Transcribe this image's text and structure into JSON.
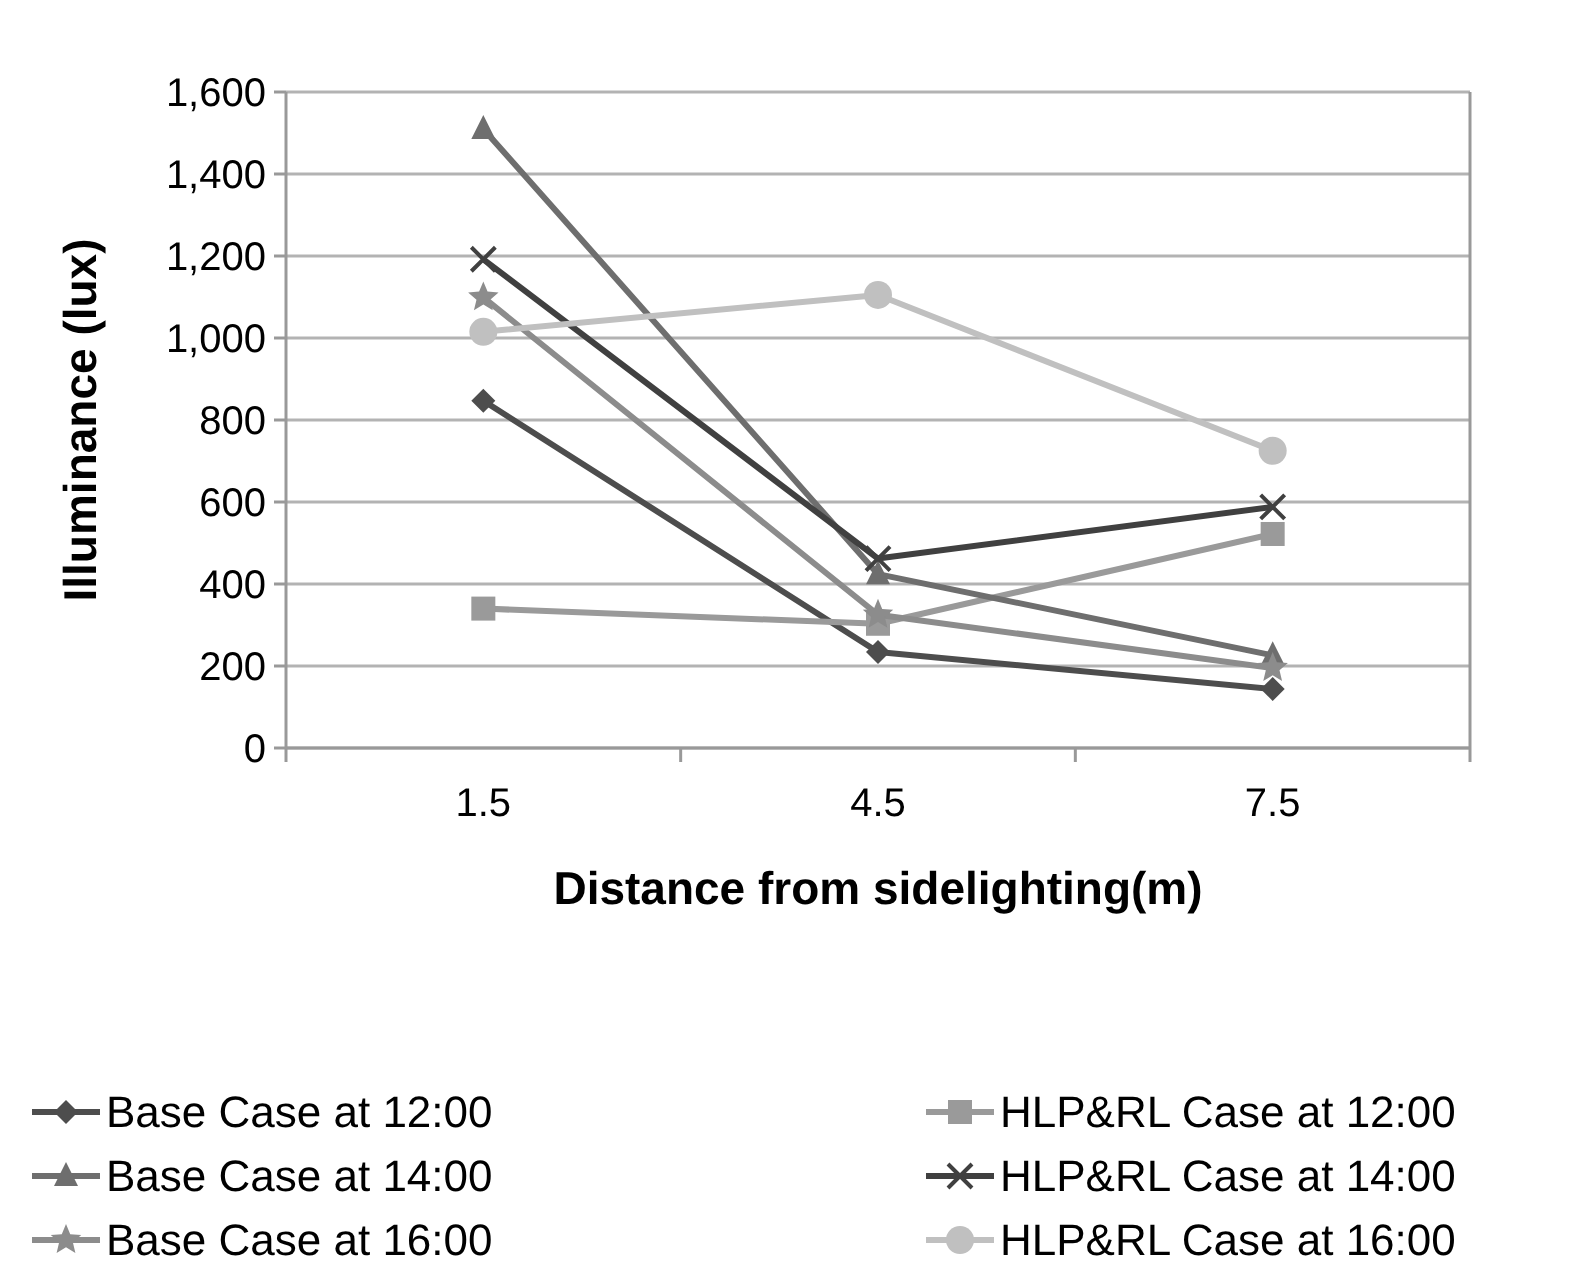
{
  "chart_data": {
    "type": "line",
    "xlabel": "Distance from sidelighting(m)",
    "ylabel": "Illuminance (lux)",
    "categories": [
      "1.5",
      "4.5",
      "7.5"
    ],
    "ylim": [
      0,
      1600
    ],
    "yticks": [
      {
        "value": 0,
        "label": "0"
      },
      {
        "value": 200,
        "label": "200"
      },
      {
        "value": 400,
        "label": "400"
      },
      {
        "value": 600,
        "label": "600"
      },
      {
        "value": 800,
        "label": "800"
      },
      {
        "value": 1000,
        "label": "1,000"
      },
      {
        "value": 1200,
        "label": "1,200"
      },
      {
        "value": 1400,
        "label": "1,400"
      },
      {
        "value": 1600,
        "label": "1,600"
      }
    ],
    "grid": "y",
    "legend": "bottom",
    "line_style": "solid",
    "series": [
      {
        "name": "Base Case at 12:00",
        "color": "#4d4d4d",
        "marker": "diamond",
        "values": [
          847,
          234,
          144
        ]
      },
      {
        "name": "HLP&RL Case at 12:00",
        "color": "#9a9a9a",
        "marker": "square",
        "values": [
          340,
          303,
          522
        ]
      },
      {
        "name": "Base Case at 14:00",
        "color": "#6e6e6e",
        "marker": "triangle",
        "values": [
          1510,
          424,
          226
        ]
      },
      {
        "name": "HLP&RL Case at 14:00",
        "color": "#404040",
        "marker": "cross",
        "values": [
          1192,
          462,
          588
        ]
      },
      {
        "name": "Base Case at 16:00",
        "color": "#8c8c8c",
        "marker": "star",
        "values": [
          1099,
          325,
          195
        ]
      },
      {
        "name": "HLP&RL Case at 16:00",
        "color": "#c0c0c0",
        "marker": "circle",
        "values": [
          1015,
          1105,
          725
        ]
      }
    ]
  }
}
